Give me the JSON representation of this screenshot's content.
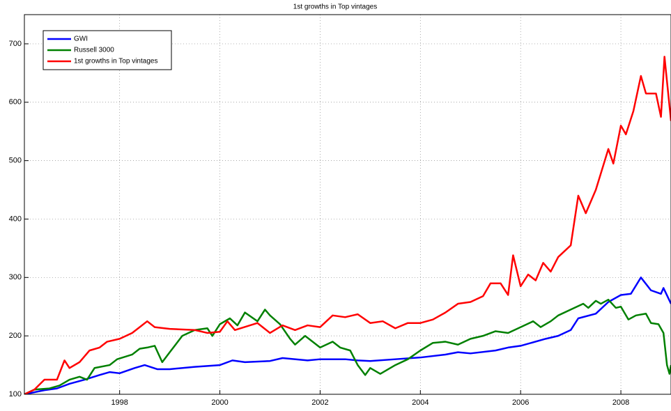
{
  "chart_data": {
    "type": "line",
    "title": "1st growths in Top vintages",
    "xlim": [
      1996.1,
      2009
    ],
    "xticks": [
      1998,
      2000,
      2002,
      2004,
      2006,
      2008
    ],
    "ylim": [
      100,
      750
    ],
    "yticks": [
      100,
      200,
      300,
      400,
      500,
      600,
      700
    ],
    "grid": true,
    "legend": "upper-left",
    "series": [
      {
        "name": "GWI",
        "color": "#0000ff",
        "x": [
          1996.1,
          1996.5,
          1996.75,
          1997.0,
          1997.3,
          1997.6,
          1997.8,
          1998.0,
          1998.3,
          1998.5,
          1998.75,
          1999.0,
          1999.5,
          2000.0,
          2000.25,
          2000.5,
          2001.0,
          2001.25,
          2001.75,
          2002.0,
          2002.5,
          2002.75,
          2003.0,
          2003.5,
          2004.0,
          2004.5,
          2004.75,
          2005.0,
          2005.5,
          2005.75,
          2006.0,
          2006.5,
          2006.75,
          2007.0,
          2007.15,
          2007.5,
          2007.75,
          2008.0,
          2008.2,
          2008.4,
          2008.6,
          2008.8,
          2008.85,
          2009.0
        ],
        "values": [
          100,
          107,
          110,
          118,
          125,
          133,
          138,
          136,
          145,
          150,
          143,
          143,
          147,
          150,
          158,
          155,
          157,
          162,
          158,
          160,
          160,
          158,
          157,
          160,
          163,
          168,
          172,
          170,
          175,
          180,
          183,
          195,
          200,
          210,
          230,
          238,
          258,
          270,
          272,
          300,
          278,
          272,
          282,
          255
        ]
      },
      {
        "name": "Russell 3000",
        "color": "#008000",
        "x": [
          1996.1,
          1996.3,
          1996.6,
          1996.8,
          1997.0,
          1997.2,
          1997.35,
          1997.5,
          1997.8,
          1997.95,
          1998.25,
          1998.4,
          1998.55,
          1998.7,
          1998.85,
          1999.0,
          1999.25,
          1999.5,
          1999.75,
          1999.85,
          2000.0,
          2000.2,
          2000.35,
          2000.5,
          2000.75,
          2000.9,
          2001.0,
          2001.2,
          2001.4,
          2001.5,
          2001.7,
          2002.0,
          2002.25,
          2002.4,
          2002.6,
          2002.75,
          2002.9,
          2003.0,
          2003.2,
          2003.5,
          2003.75,
          2004.0,
          2004.25,
          2004.5,
          2004.75,
          2005.0,
          2005.25,
          2005.5,
          2005.75,
          2006.0,
          2006.25,
          2006.4,
          2006.6,
          2006.75,
          2007.0,
          2007.25,
          2007.35,
          2007.5,
          2007.6,
          2007.75,
          2007.9,
          2008.0,
          2008.15,
          2008.3,
          2008.5,
          2008.6,
          2008.75,
          2008.85,
          2008.92,
          2008.97,
          2009.0
        ],
        "values": [
          100,
          108,
          110,
          115,
          125,
          130,
          125,
          145,
          150,
          160,
          168,
          178,
          180,
          183,
          155,
          172,
          200,
          210,
          213,
          200,
          220,
          230,
          218,
          240,
          225,
          245,
          235,
          220,
          195,
          185,
          200,
          180,
          190,
          180,
          175,
          150,
          133,
          145,
          135,
          150,
          160,
          175,
          188,
          190,
          185,
          195,
          200,
          208,
          205,
          215,
          225,
          215,
          225,
          235,
          245,
          255,
          248,
          260,
          255,
          262,
          248,
          250,
          228,
          235,
          238,
          222,
          220,
          205,
          150,
          135,
          150
        ]
      },
      {
        "name": "1st growths in Top vintages",
        "color": "#ff0000",
        "x": [
          1996.1,
          1996.3,
          1996.5,
          1996.75,
          1996.9,
          1997.0,
          1997.2,
          1997.4,
          1997.6,
          1997.75,
          1998.0,
          1998.25,
          1998.4,
          1998.55,
          1998.7,
          1999.0,
          1999.5,
          1999.75,
          2000.0,
          2000.15,
          2000.3,
          2000.75,
          2001.0,
          2001.25,
          2001.5,
          2001.75,
          2002.0,
          2002.25,
          2002.5,
          2002.75,
          2003.0,
          2003.25,
          2003.5,
          2003.75,
          2004.0,
          2004.25,
          2004.5,
          2004.75,
          2005.0,
          2005.25,
          2005.4,
          2005.6,
          2005.75,
          2005.85,
          2006.0,
          2006.15,
          2006.3,
          2006.45,
          2006.6,
          2006.75,
          2007.0,
          2007.15,
          2007.3,
          2007.5,
          2007.75,
          2007.85,
          2008.0,
          2008.1,
          2008.25,
          2008.4,
          2008.5,
          2008.7,
          2008.8,
          2008.87,
          2009.0
        ],
        "values": [
          100,
          108,
          125,
          125,
          158,
          145,
          155,
          175,
          180,
          190,
          195,
          205,
          215,
          225,
          215,
          212,
          210,
          205,
          207,
          225,
          210,
          222,
          205,
          218,
          210,
          218,
          215,
          235,
          232,
          237,
          222,
          225,
          213,
          222,
          222,
          228,
          240,
          255,
          258,
          268,
          290,
          290,
          270,
          338,
          285,
          305,
          295,
          325,
          310,
          335,
          355,
          440,
          410,
          450,
          520,
          495,
          560,
          545,
          585,
          645,
          615,
          615,
          575,
          678,
          568
        ]
      }
    ]
  }
}
